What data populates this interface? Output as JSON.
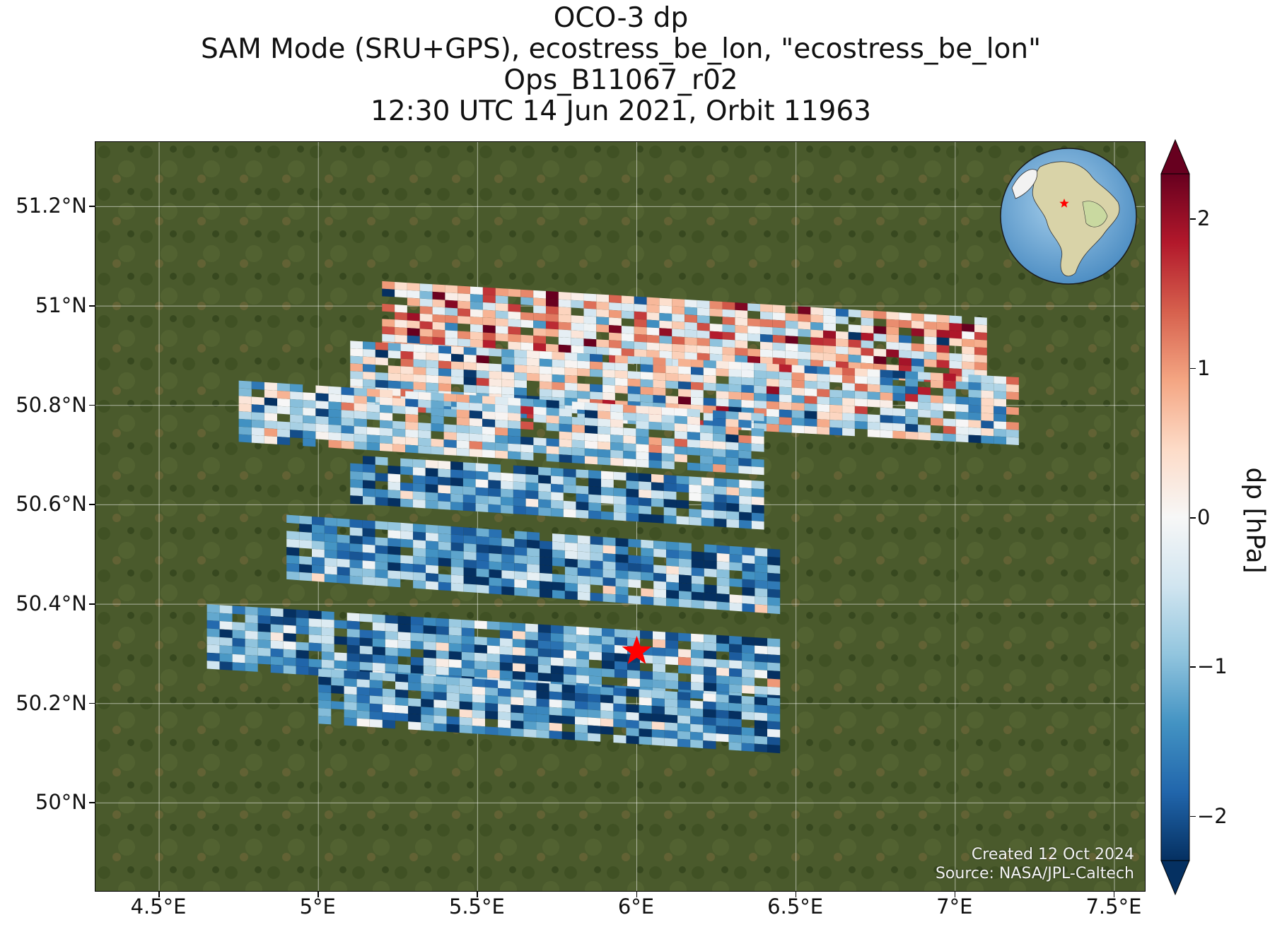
{
  "title": {
    "line1": "OCO-3 dp",
    "line2": "SAM Mode (SRU+GPS), ecostress_be_lon, \"ecostress_be_lon\"",
    "line3": "Ops_B11067_r02",
    "line4": "12:30 UTC 14 Jun 2021, Orbit 11963"
  },
  "map": {
    "extent": {
      "lon_min": 4.3,
      "lon_max": 7.6,
      "lat_min": 49.82,
      "lat_max": 51.33
    },
    "x_ticks": [
      {
        "lon": 4.5,
        "label": "4.5°E"
      },
      {
        "lon": 5.0,
        "label": "5°E"
      },
      {
        "lon": 5.5,
        "label": "5.5°E"
      },
      {
        "lon": 6.0,
        "label": "6°E"
      },
      {
        "lon": 6.5,
        "label": "6.5°E"
      },
      {
        "lon": 7.0,
        "label": "7°E"
      },
      {
        "lon": 7.5,
        "label": "7.5°E"
      }
    ],
    "y_ticks": [
      {
        "lat": 51.2,
        "label": "51.2°N"
      },
      {
        "lat": 51.0,
        "label": "51°N"
      },
      {
        "lat": 50.8,
        "label": "50.8°N"
      },
      {
        "lat": 50.6,
        "label": "50.6°N"
      },
      {
        "lat": 50.4,
        "label": "50.4°N"
      },
      {
        "lat": 50.2,
        "label": "50.2°N"
      },
      {
        "lat": 50.0,
        "label": "50°N"
      }
    ],
    "gridlines": true,
    "background": "satellite imagery",
    "target_marker": {
      "lon": 6.0,
      "lat": 50.305,
      "symbol": "star",
      "color": "#ff0000"
    },
    "inset_globe": {
      "position": "top-right",
      "marker_color": "#ff0000"
    }
  },
  "chart_data": {
    "type": "heatmap",
    "variable": "dp",
    "colorbar": {
      "label": "dp [hPa]",
      "vmin": -2.3,
      "vmax": 2.3,
      "extend": "both",
      "colormap": "RdBu_r",
      "ticks": [
        {
          "value": 2,
          "label": "2"
        },
        {
          "value": 1,
          "label": "1"
        },
        {
          "value": 0,
          "label": "0"
        },
        {
          "value": -1,
          "label": "−1"
        },
        {
          "value": -2,
          "label": "−2"
        }
      ],
      "colors": [
        "#053061",
        "#2166ac",
        "#4393c3",
        "#92c5de",
        "#d1e5f0",
        "#f7f7f7",
        "#fddbc7",
        "#f4a582",
        "#d6604d",
        "#b2182b",
        "#67001f"
      ]
    },
    "swaths": [
      {
        "name": "swath-1",
        "lon_range": [
          5.2,
          7.1
        ],
        "lat_range": [
          50.84,
          51.05
        ],
        "dp_mean": 0.4,
        "dp_spread": 1.4
      },
      {
        "name": "swath-2",
        "lon_range": [
          5.1,
          7.2
        ],
        "lat_range": [
          50.72,
          50.93
        ],
        "dp_mean": -0.2,
        "dp_spread": 1.4
      },
      {
        "name": "swath-3",
        "lon_range": [
          4.75,
          6.4
        ],
        "lat_range": [
          50.66,
          50.85
        ],
        "dp_mean": -0.6,
        "dp_spread": 1.3
      },
      {
        "name": "swath-4",
        "lon_range": [
          5.1,
          6.4
        ],
        "lat_range": [
          50.55,
          50.7
        ],
        "dp_mean": -1.2,
        "dp_spread": 1.2
      },
      {
        "name": "swath-5",
        "lon_range": [
          4.9,
          6.45
        ],
        "lat_range": [
          50.38,
          50.58
        ],
        "dp_mean": -1.3,
        "dp_spread": 1.1
      },
      {
        "name": "swath-6",
        "lon_range": [
          4.65,
          6.45
        ],
        "lat_range": [
          50.2,
          50.4
        ],
        "dp_mean": -1.2,
        "dp_spread": 1.2
      },
      {
        "name": "swath-7",
        "lon_range": [
          5.0,
          6.45
        ],
        "lat_range": [
          50.1,
          50.27
        ],
        "dp_mean": -1.3,
        "dp_spread": 1.1
      }
    ]
  },
  "credits": {
    "line1": "Created 12 Oct 2024",
    "line2": "Source: NASA/JPL-Caltech"
  }
}
